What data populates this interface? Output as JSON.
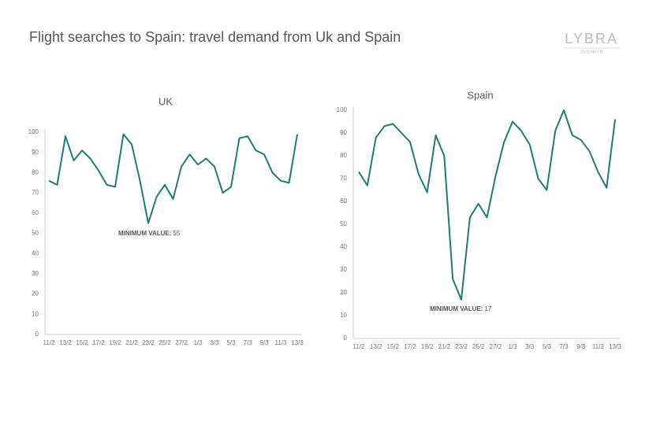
{
  "title": "Flight searches to Spain: travel demand from Uk and Spain",
  "logo": {
    "name": "LYBRA",
    "sub": "ZUCCHETTI"
  },
  "chart_data": [
    {
      "type": "line",
      "title": "UK",
      "categories": [
        "11/2",
        null,
        "13/2",
        null,
        "15/2",
        null,
        "17/2",
        null,
        "19/2",
        null,
        "21/2",
        null,
        "23/2",
        null,
        "25/2",
        null,
        "27/2",
        null,
        "1/3",
        null,
        "3/3",
        null,
        "5/3",
        null,
        "7/3",
        null,
        "9/3",
        null,
        "11/3",
        null,
        "13/3"
      ],
      "series": [
        {
          "name": "UK",
          "color": "#1d7d70",
          "values": [
            76,
            74,
            98,
            86,
            91,
            87,
            81,
            74,
            73,
            99,
            94,
            76,
            55,
            68,
            74,
            67,
            83,
            89,
            84,
            87,
            83,
            70,
            73,
            97,
            98,
            91,
            89,
            80,
            76,
            75,
            99
          ]
        }
      ],
      "ylim": [
        0,
        100
      ],
      "yticks": [
        0,
        10,
        20,
        30,
        40,
        50,
        60,
        70,
        80,
        90,
        100
      ],
      "grid": false,
      "annotation": "MINIMUM VALUE:"
    },
    {
      "type": "line",
      "title": "Spain",
      "categories": [
        "11/2",
        null,
        "13/2",
        null,
        "15/2",
        null,
        "17/2",
        null,
        "19/2",
        null,
        "21/2",
        null,
        "23/2",
        null,
        "25/2",
        null,
        "27/2",
        null,
        "1/3",
        null,
        "3/3",
        null,
        "5/3",
        null,
        "7/3",
        null,
        "9/3",
        null,
        "11/3",
        null,
        "13/3"
      ],
      "series": [
        {
          "name": "Spain",
          "color": "#1d7d70",
          "values": [
            73,
            67,
            88,
            93,
            94,
            90,
            86,
            72,
            64,
            89,
            80,
            26,
            17,
            53,
            59,
            53,
            71,
            86,
            95,
            91,
            85,
            70,
            65,
            91,
            100,
            89,
            87,
            82,
            73,
            66,
            96
          ]
        }
      ],
      "ylim": [
        0,
        100
      ],
      "yticks": [
        0,
        10,
        20,
        30,
        40,
        50,
        60,
        70,
        80,
        90,
        100
      ],
      "grid": false,
      "annotation": "MINIMUM VALUE:"
    }
  ]
}
